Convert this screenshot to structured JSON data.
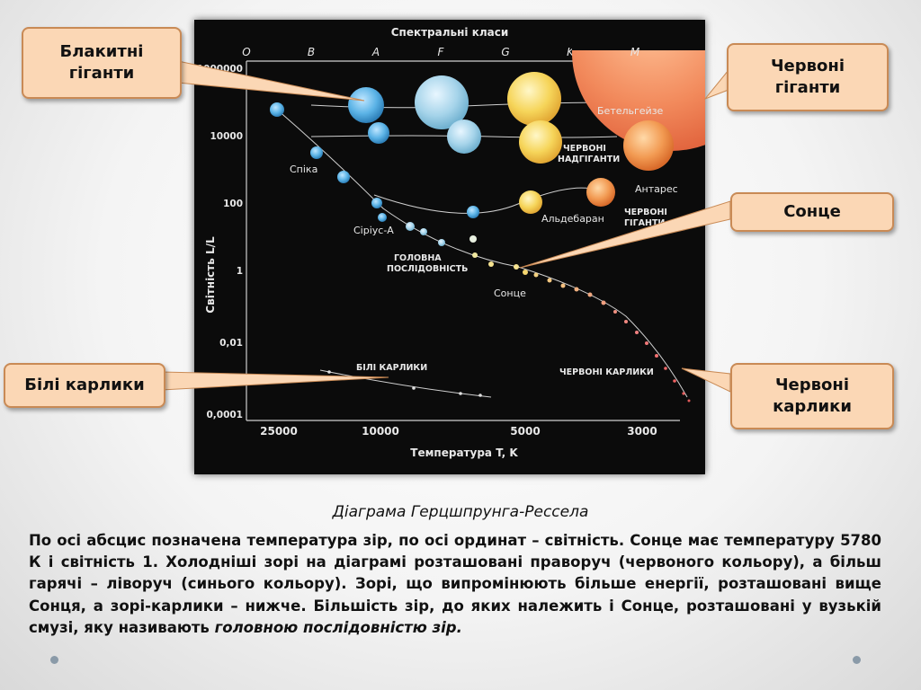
{
  "diagram": {
    "top_title": "Спектральні класи",
    "spectral_classes": [
      "O",
      "B",
      "A",
      "F",
      "G",
      "K",
      "M"
    ],
    "y_axis_label": "Світність L/L",
    "y_ticks": [
      "1000000",
      "10000",
      "100",
      "1",
      "0,01",
      "0,0001"
    ],
    "x_axis_label": "Температура T, K",
    "x_ticks": [
      "25000",
      "10000",
      "5000",
      "3000"
    ],
    "labels": {
      "betelgeuse": "Бетельгейзе",
      "red_supergiants": "ЧЕРВОНІ\nНАДГІГАНТИ",
      "antares": "Антарес",
      "spica": "Спіка",
      "aldebaran": "Альдебаран",
      "red_giants_inner": "ЧЕРВОНІ\nГІГАНТИ",
      "sirius": "Сіріус-А",
      "main_sequence": "ГОЛОВНА\nПОСЛІДОВНІСТЬ",
      "sun": "Сонце",
      "white_dwarfs": "БІЛІ КАРЛИКИ",
      "red_dwarfs": "ЧЕРВОНІ КАРЛИКИ"
    }
  },
  "callouts": {
    "blue_giants": "Блакитні\nгіганти",
    "red_giants": "Червоні\nгіганти",
    "sun": "Сонце",
    "white_dwarfs": "Білі карлики",
    "red_dwarfs": "Червоні\nкарлики"
  },
  "caption": "Діаграма Герцшпрунга-Рессела",
  "description_text": "По осі абсцис позначена температура зір, по осі ординат – світність. Сонце має температуру 5780 К і світність 1. Холодніші зорі на діаграмі розташовані  праворуч (червоного кольору), а більш гарячі – ліворуч (синього кольору). Зорі, що випромінюють  більше енергії, розташовані вище Сонця, а зорі-карлики – нижче. Більшість зір, до яких належить і Сонце, розташовані у вузькій смузі, яку називають",
  "description_emphasis": "головною послідовністю зір."
}
